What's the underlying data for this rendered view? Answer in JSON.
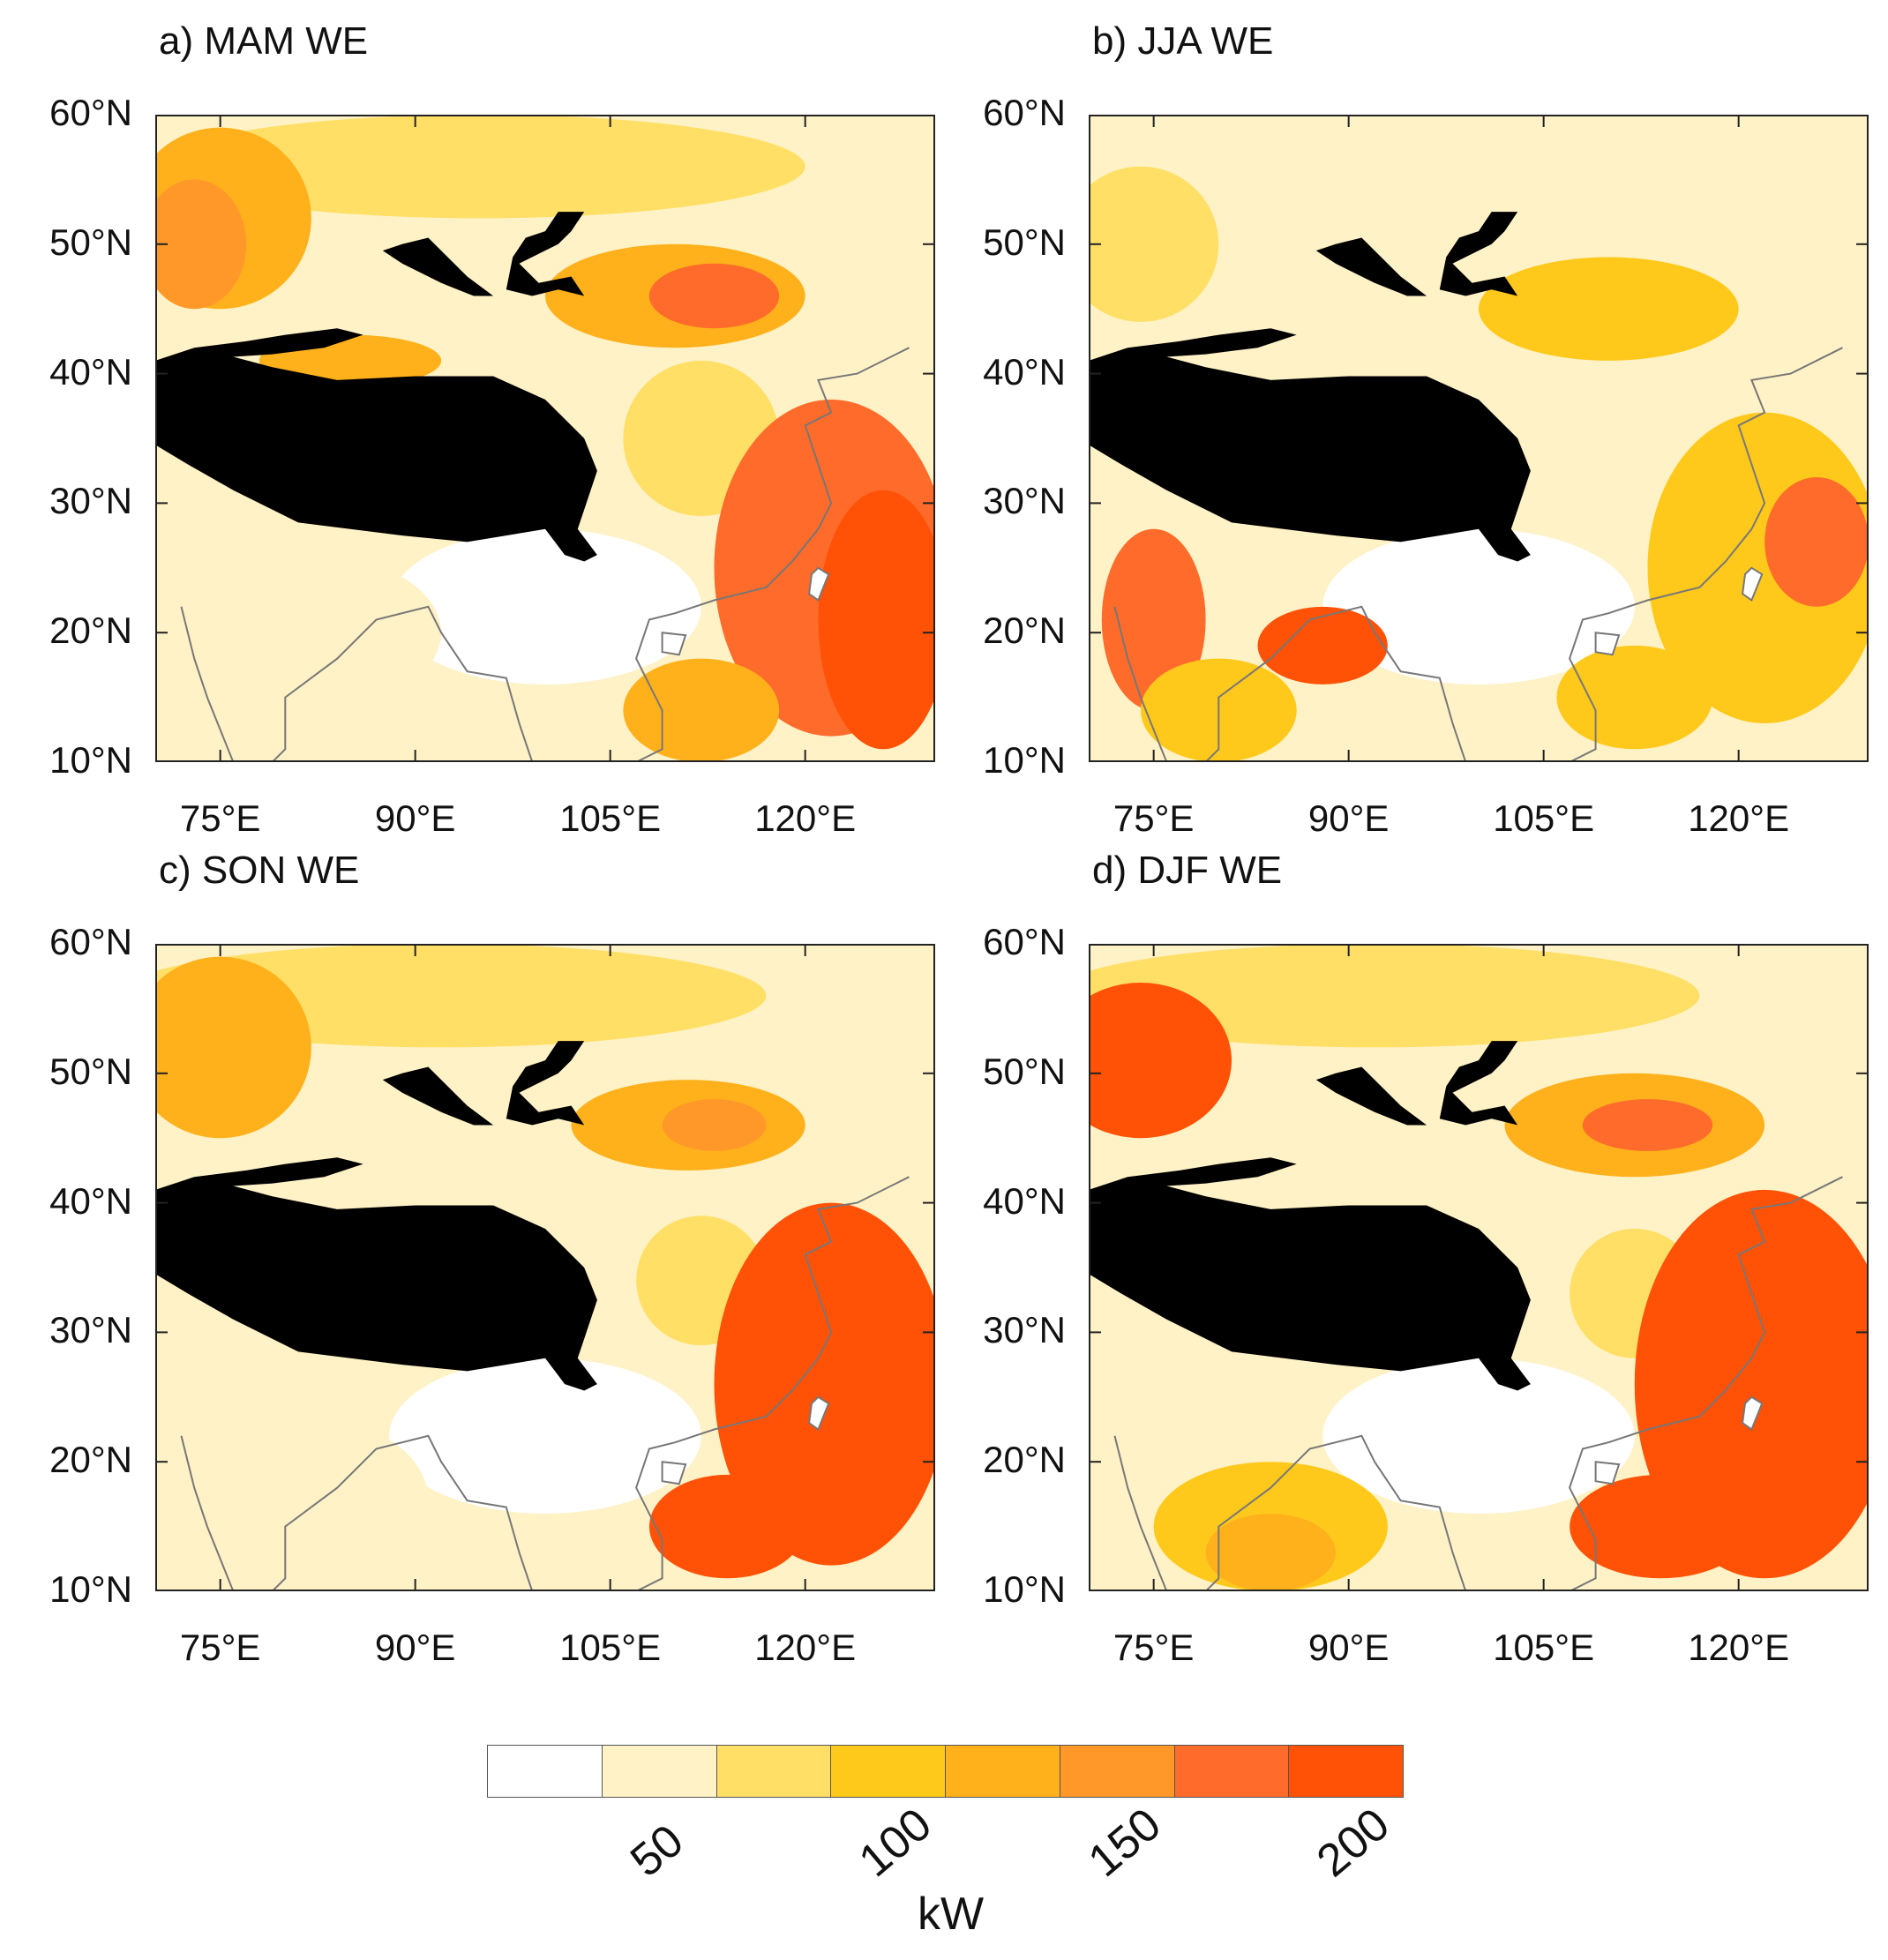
{
  "panels": [
    {
      "id": "a",
      "title": "a) MAM WE"
    },
    {
      "id": "b",
      "title": "b) JJA WE"
    },
    {
      "id": "c",
      "title": "c) SON WE"
    },
    {
      "id": "d",
      "title": "d) DJF WE"
    }
  ],
  "map_extent": {
    "lon_min": 70,
    "lon_max": 130,
    "lat_min": 10,
    "lat_max": 60
  },
  "lat_ticks": [
    {
      "value": 60,
      "label": "60°N"
    },
    {
      "value": 50,
      "label": "50°N"
    },
    {
      "value": 40,
      "label": "40°N"
    },
    {
      "value": 30,
      "label": "30°N"
    },
    {
      "value": 20,
      "label": "20°N"
    },
    {
      "value": 10,
      "label": "10°N"
    }
  ],
  "lon_ticks": [
    {
      "value": 75,
      "label": "75°E"
    },
    {
      "value": 90,
      "label": "90°E"
    },
    {
      "value": 105,
      "label": "105°E"
    },
    {
      "value": 120,
      "label": "120°E"
    }
  ],
  "colorbar": {
    "unit": "kW",
    "bins": [
      "#ffffff",
      "#fff2c6",
      "#ffdf66",
      "#ffc91c",
      "#ffb11c",
      "#ff9828",
      "#ff6b2a",
      "#ff5206"
    ],
    "tick_labels": [
      {
        "value": 50,
        "label": "50"
      },
      {
        "value": 100,
        "label": "100"
      },
      {
        "value": 150,
        "label": "150"
      },
      {
        "value": 200,
        "label": "200"
      }
    ]
  },
  "masked_color": "#000000",
  "coastline_color": "#777777"
}
